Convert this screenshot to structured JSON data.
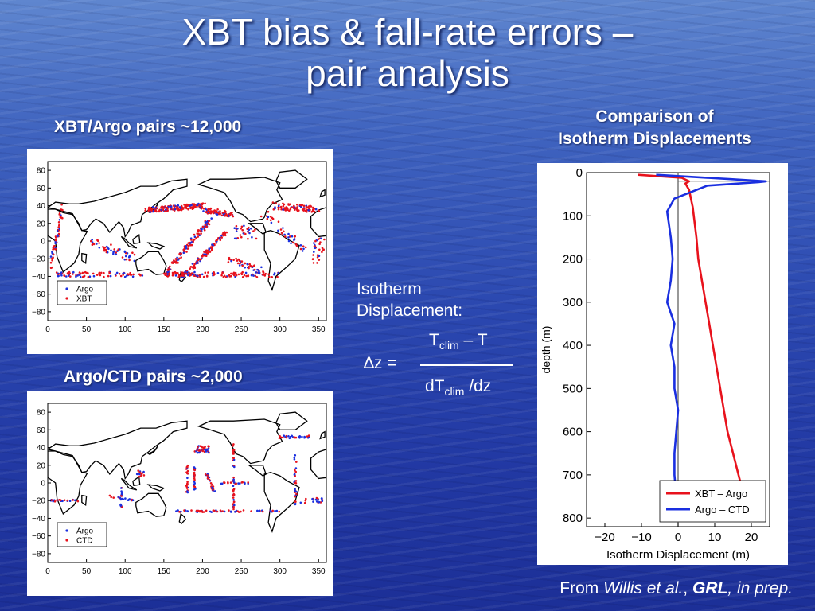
{
  "title_line1": "XBT bias & fall-rate errors –",
  "title_line2": "pair analysis",
  "label_xbt_argo": "XBT/Argo pairs  ~12,000",
  "label_argo_ctd": "Argo/CTD pairs  ~2,000",
  "comparison_line1": "Comparison of",
  "comparison_line2": "Isotherm Displacements",
  "formula": {
    "heading_line1": "Isotherm",
    "heading_line2": "Displacement:",
    "lhs": "∆z =",
    "num_main": "T",
    "num_sub": "clim",
    "num_tail": " – T",
    "den_main": "dT",
    "den_sub": "clim",
    "den_tail": " /dz"
  },
  "source": {
    "prefix": "From ",
    "authors": "Willis et al.",
    "sep": ", ",
    "journal": "GRL",
    "status": ", in prep."
  },
  "colors": {
    "red": "#e8121c",
    "blue": "#1a2fe0"
  },
  "chart_data": [
    {
      "type": "scatter",
      "name_label": "map1",
      "series": [
        {
          "name": "Argo"
        },
        {
          "name": "XBT"
        }
      ],
      "x_ticks": [
        "0",
        "50",
        "100",
        "150",
        "200",
        "250",
        "300",
        "350"
      ],
      "y_ticks": [
        "80",
        "60",
        "40",
        "20",
        "0",
        "−20",
        "−40",
        "−60",
        "−80"
      ],
      "xlim": [
        0,
        360
      ],
      "ylim": [
        -90,
        90
      ],
      "legend": "bottom-left"
    },
    {
      "type": "scatter",
      "name_label": "map2",
      "series": [
        {
          "name": "Argo"
        },
        {
          "name": "CTD"
        }
      ],
      "x_ticks": [
        "0",
        "50",
        "100",
        "150",
        "200",
        "250",
        "300",
        "350"
      ],
      "y_ticks": [
        "80",
        "60",
        "40",
        "20",
        "0",
        "−20",
        "−40",
        "−60",
        "−80"
      ],
      "xlim": [
        0,
        360
      ],
      "ylim": [
        -90,
        90
      ],
      "legend": "bottom-left"
    },
    {
      "type": "line",
      "xlabel": "Isotherm Displacement (m)",
      "ylabel": "depth (m)",
      "xlim": [
        -25,
        25
      ],
      "ylim": [
        0,
        820
      ],
      "x_ticks": [
        "−20",
        "−10",
        "0",
        "10",
        "20"
      ],
      "y_ticks": [
        "0",
        "100",
        "200",
        "300",
        "400",
        "500",
        "600",
        "700",
        "800"
      ],
      "legend": "bottom-right",
      "series": [
        {
          "name": "XBT – Argo",
          "color": "#e8121c",
          "depth": [
            5,
            12,
            20,
            25,
            40,
            80,
            150,
            200,
            250,
            300,
            350,
            400,
            450,
            500,
            550,
            600,
            650,
            700,
            750
          ],
          "value": [
            -11,
            1,
            3,
            2,
            3,
            4,
            5,
            5.5,
            6.5,
            7.5,
            8.5,
            9.5,
            10.5,
            11.5,
            12.5,
            13.5,
            15,
            16.5,
            18
          ]
        },
        {
          "name": "Argo – CTD",
          "color": "#1a2fe0",
          "depth": [
            5,
            15,
            20,
            22,
            30,
            60,
            90,
            150,
            200,
            250,
            300,
            350,
            400,
            450,
            500,
            550,
            600,
            650,
            700,
            750
          ],
          "value": [
            -6,
            14,
            24,
            22,
            8,
            -1,
            -3,
            -2,
            -1.5,
            -2,
            -3,
            -1,
            -2,
            -1,
            -1,
            0,
            -0.5,
            -1,
            -1,
            -0.5
          ]
        }
      ]
    }
  ]
}
